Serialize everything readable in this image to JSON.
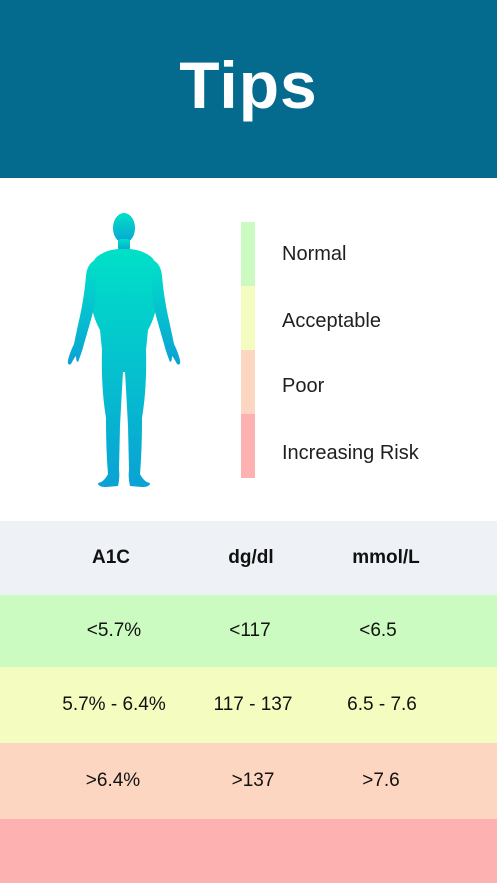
{
  "header": {
    "title": "Tips"
  },
  "colors": {
    "header_bg": "#046b8f",
    "normal": "#cbfbc0",
    "acceptable": "#f4fdbf",
    "poor": "#fdd6c2",
    "increasing_risk": "#fdb1b0",
    "table_header_bg": "#eef2f6",
    "figure_top": "#00e0c8",
    "figure_bottom": "#0aa2d4"
  },
  "legend": {
    "items": [
      {
        "label": "Normal",
        "color": "#cbfbc0"
      },
      {
        "label": "Acceptable",
        "color": "#f4fdbf"
      },
      {
        "label": "Poor",
        "color": "#fdd6c2"
      },
      {
        "label": "Increasing Risk",
        "color": "#fdb1b0"
      }
    ]
  },
  "table": {
    "headers": [
      "A1C",
      "dg/dl",
      "mmol/L"
    ],
    "rows": [
      [
        "<5.7%",
        "<117",
        "<6.5"
      ],
      [
        "5.7% - 6.4%",
        "117 - 137",
        "6.5 - 7.6"
      ],
      [
        ">6.4%",
        ">137",
        ">7.6"
      ],
      [
        "",
        "",
        ""
      ]
    ]
  }
}
